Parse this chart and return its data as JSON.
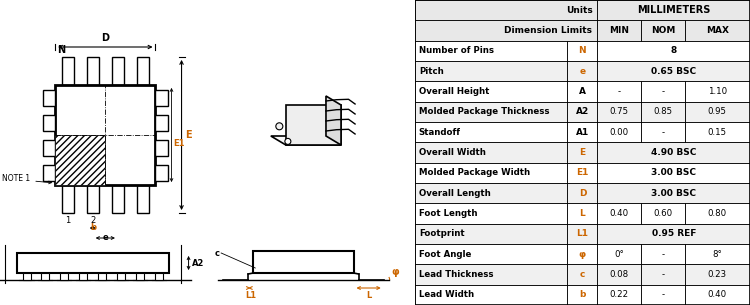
{
  "rows": [
    [
      "Number of Pins",
      "N",
      "",
      "8",
      ""
    ],
    [
      "Pitch",
      "e",
      "",
      "0.65 BSC",
      ""
    ],
    [
      "Overall Height",
      "A",
      "-",
      "-",
      "1.10"
    ],
    [
      "Molded Package Thickness",
      "A2",
      "0.75",
      "0.85",
      "0.95"
    ],
    [
      "Standoff",
      "A1",
      "0.00",
      "-",
      "0.15"
    ],
    [
      "Overall Width",
      "E",
      "",
      "4.90 BSC",
      ""
    ],
    [
      "Molded Package Width",
      "E1",
      "",
      "3.00 BSC",
      ""
    ],
    [
      "Overall Length",
      "D",
      "",
      "3.00 BSC",
      ""
    ],
    [
      "Foot Length",
      "L",
      "0.40",
      "0.60",
      "0.80"
    ],
    [
      "Footprint",
      "L1",
      "",
      "0.95 REF",
      ""
    ],
    [
      "Foot Angle",
      "φ",
      "0°",
      "-",
      "8°"
    ],
    [
      "Lead Thickness",
      "c",
      "0.08",
      "-",
      "0.23"
    ],
    [
      "Lead Width",
      "b",
      "0.22",
      "-",
      "0.40"
    ]
  ],
  "orange_labels": [
    "N",
    "e",
    "E",
    "E1",
    "D",
    "L",
    "L1",
    "φ",
    "c",
    "b"
  ],
  "bold_names": [
    "Number of Pins",
    "Pitch",
    "Overall Width",
    "Molded Package Width",
    "Overall Length",
    "Foot Length",
    "Footprint",
    "Foot Angle",
    "Lead Thickness",
    "Lead Width",
    "Molded Package Thickness",
    "Standoff",
    "Overall Height"
  ],
  "orange_color": "#cc6600",
  "gray_bg": "#e8e8e8",
  "row_bg_even": "#ffffff",
  "row_bg_odd": "#f0f0f0"
}
